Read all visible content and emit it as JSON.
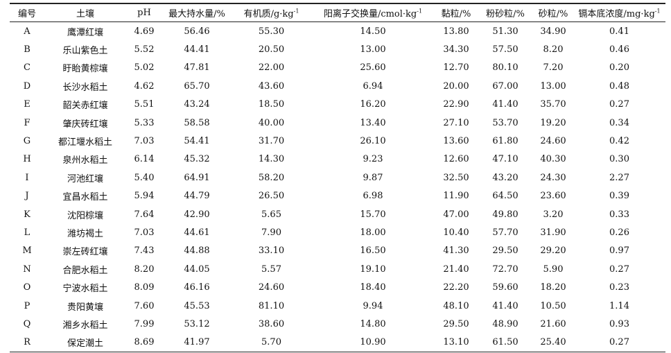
{
  "table": {
    "headers": [
      {
        "text": "编号"
      },
      {
        "text": "土壤"
      },
      {
        "text": "pH"
      },
      {
        "text": "最大持水量/%"
      },
      {
        "text": "有机质/g·kg",
        "sup": "-1"
      },
      {
        "text": "阳离子交换量/cmol·kg",
        "sup": "-1"
      },
      {
        "text": "黏粒/%"
      },
      {
        "text": "粉砂粒/%"
      },
      {
        "text": "砂粒/%"
      },
      {
        "text": "镉本底浓度/mg·kg",
        "sup": "-1"
      }
    ],
    "rows": [
      [
        "A",
        "鹰潭红壤",
        "4.69",
        "56.46",
        "55.30",
        "14.50",
        "13.80",
        "51.30",
        "34.90",
        "0.41"
      ],
      [
        "B",
        "乐山紫色土",
        "5.52",
        "44.41",
        "20.50",
        "13.00",
        "34.30",
        "57.50",
        "8.20",
        "0.46"
      ],
      [
        "C",
        "盱眙黄棕壤",
        "5.02",
        "47.81",
        "22.00",
        "25.60",
        "12.70",
        "80.10",
        "7.20",
        "0.20"
      ],
      [
        "D",
        "长沙水稻土",
        "4.62",
        "65.70",
        "43.60",
        "6.94",
        "20.00",
        "67.00",
        "13.00",
        "0.48"
      ],
      [
        "E",
        "韶关赤红壤",
        "5.51",
        "43.24",
        "18.50",
        "16.20",
        "22.90",
        "41.40",
        "35.70",
        "0.27"
      ],
      [
        "F",
        "肇庆砖红壤",
        "5.33",
        "58.58",
        "40.00",
        "13.40",
        "27.10",
        "53.70",
        "19.20",
        "0.34"
      ],
      [
        "G",
        "都江堰水稻土",
        "7.03",
        "54.41",
        "31.70",
        "26.10",
        "13.60",
        "61.80",
        "24.60",
        "0.42"
      ],
      [
        "H",
        "泉州水稻土",
        "6.14",
        "45.32",
        "14.30",
        "9.23",
        "12.60",
        "47.10",
        "40.30",
        "0.30"
      ],
      [
        "I",
        "河池红壤",
        "5.40",
        "64.91",
        "58.20",
        "9.87",
        "32.50",
        "43.20",
        "24.30",
        "2.27"
      ],
      [
        "J",
        "宜昌水稻土",
        "5.94",
        "44.79",
        "26.50",
        "6.98",
        "11.90",
        "64.50",
        "23.60",
        "0.39"
      ],
      [
        "K",
        "沈阳棕壤",
        "7.64",
        "42.90",
        "5.65",
        "15.70",
        "47.00",
        "49.80",
        "3.20",
        "0.33"
      ],
      [
        "L",
        "潍坊褐土",
        "7.03",
        "44.61",
        "7.90",
        "18.00",
        "10.40",
        "57.70",
        "31.90",
        "0.26"
      ],
      [
        "M",
        "崇左砖红壤",
        "7.43",
        "44.88",
        "33.10",
        "16.50",
        "41.30",
        "29.50",
        "29.20",
        "0.97"
      ],
      [
        "N",
        "合肥水稻土",
        "8.20",
        "44.05",
        "5.57",
        "19.10",
        "21.40",
        "72.70",
        "5.90",
        "0.27"
      ],
      [
        "O",
        "宁波水稻土",
        "8.09",
        "46.16",
        "24.60",
        "18.40",
        "22.20",
        "59.60",
        "18.20",
        "0.23"
      ],
      [
        "P",
        "贵阳黄壤",
        "7.60",
        "45.53",
        "81.10",
        "9.94",
        "48.10",
        "41.40",
        "10.50",
        "1.14"
      ],
      [
        "Q",
        "湘乡水稻土",
        "7.99",
        "53.12",
        "38.60",
        "14.80",
        "29.50",
        "48.90",
        "21.60",
        "0.93"
      ],
      [
        "R",
        "保定潮土",
        "8.69",
        "41.97",
        "5.70",
        "10.90",
        "13.10",
        "61.50",
        "25.40",
        "0.27"
      ]
    ]
  }
}
